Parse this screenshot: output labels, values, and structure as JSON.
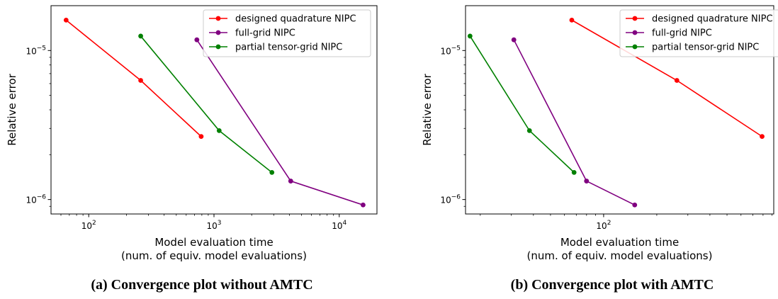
{
  "chart_data": [
    {
      "type": "line",
      "caption": "(a) Convergence plot without AMTC",
      "xlabel_line1": "Model evaluation time",
      "xlabel_line2": "(num. of equiv. model evaluations)",
      "ylabel": "Relative error",
      "xscale": "log",
      "yscale": "log",
      "xlim": [
        50,
        20000
      ],
      "ylim": [
        8e-07,
        2e-05
      ],
      "xticks": [
        {
          "value": 100,
          "label": "10^2"
        },
        {
          "value": 1000,
          "label": "10^3"
        },
        {
          "value": 10000,
          "label": "10^4"
        }
      ],
      "yticks": [
        {
          "value": 1e-06,
          "label": "10^−6"
        },
        {
          "value": 1e-05,
          "label": "10^−5"
        }
      ],
      "legend_position": "top-right",
      "series": [
        {
          "name": "designed quadrature NIPC",
          "color": "#ff0000",
          "x": [
            66,
            260,
            790
          ],
          "y": [
            1.6e-05,
            6.3e-06,
            2.65e-06
          ]
        },
        {
          "name": "full-grid NIPC",
          "color": "#800080",
          "x": [
            730,
            4100,
            15500
          ],
          "y": [
            1.18e-05,
            1.33e-06,
            9.2e-07
          ]
        },
        {
          "name": "partial tensor-grid NIPC",
          "color": "#008000",
          "x": [
            260,
            1100,
            2900
          ],
          "y": [
            1.25e-05,
            2.9e-06,
            1.52e-06
          ]
        }
      ]
    },
    {
      "type": "line",
      "caption": "(b) Convergence plot with AMTC",
      "xlabel_line1": "Model evaluation time",
      "xlabel_line2": "(num. of equiv. model evaluations)",
      "ylabel": "Relative error",
      "xscale": "log",
      "yscale": "log",
      "xlim": [
        16.5,
        920
      ],
      "ylim": [
        8e-07,
        2e-05
      ],
      "xticks": [
        {
          "value": 100,
          "label": "10^2"
        }
      ],
      "yticks": [
        {
          "value": 1e-06,
          "label": "10^−6"
        },
        {
          "value": 1e-05,
          "label": "10^−5"
        }
      ],
      "legend_position": "top-right",
      "series": [
        {
          "name": "designed quadrature NIPC",
          "color": "#ff0000",
          "x": [
            66,
            260,
            790
          ],
          "y": [
            1.6e-05,
            6.3e-06,
            2.65e-06
          ]
        },
        {
          "name": "full-grid NIPC",
          "color": "#800080",
          "x": [
            31,
            80,
            150
          ],
          "y": [
            1.18e-05,
            1.33e-06,
            9.2e-07
          ]
        },
        {
          "name": "partial tensor-grid NIPC",
          "color": "#008000",
          "x": [
            17.5,
            38,
            68
          ],
          "y": [
            1.25e-05,
            2.9e-06,
            1.52e-06
          ]
        }
      ]
    }
  ]
}
